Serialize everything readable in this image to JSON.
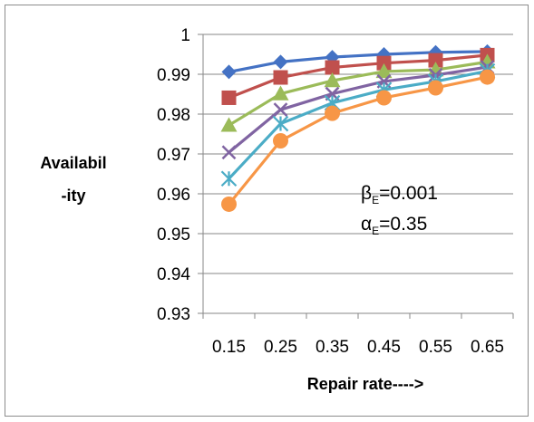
{
  "chart_data": {
    "type": "line",
    "x": [
      0.15,
      0.25,
      0.35,
      0.45,
      0.55,
      0.65
    ],
    "x_tick_labels": [
      "0.15",
      "0.25",
      "0.35",
      "0.45",
      "0.55",
      "0.65"
    ],
    "ylim": [
      0.93,
      1.0
    ],
    "y_tick_labels": [
      "0.93",
      "0.94",
      "0.95",
      "0.96",
      "0.97",
      "0.98",
      "0.99",
      "1"
    ],
    "y_ticks": [
      0.93,
      0.94,
      0.95,
      0.96,
      0.97,
      0.98,
      0.99,
      1.0
    ],
    "xlabel": "Repair rate---->",
    "ylabel_lines": [
      "Availabil",
      "-ity"
    ],
    "grid": "horizontal",
    "legend": "none",
    "annotations": [
      {
        "symbol": "β",
        "subscript": "E",
        "value": "=0.001"
      },
      {
        "symbol": "α",
        "subscript": "E",
        "value": "=0.35"
      }
    ],
    "series": [
      {
        "color": "#4472C4",
        "marker": "diamond",
        "values": [
          0.9906,
          0.9931,
          0.9943,
          0.995,
          0.9955,
          0.9957
        ]
      },
      {
        "color": "#C0504D",
        "marker": "square",
        "values": [
          0.9841,
          0.9892,
          0.9917,
          0.9928,
          0.9935,
          0.9948
        ]
      },
      {
        "color": "#9BBB59",
        "marker": "triangle",
        "values": [
          0.9772,
          0.9851,
          0.9884,
          0.9907,
          0.9911,
          0.9931
        ]
      },
      {
        "color": "#8064A2",
        "marker": "x",
        "values": [
          0.9704,
          0.9811,
          0.9851,
          0.9882,
          0.9898,
          0.9918
        ]
      },
      {
        "color": "#4BACC6",
        "marker": "star",
        "values": [
          0.9638,
          0.9776,
          0.9828,
          0.9861,
          0.9882,
          0.9908
        ]
      },
      {
        "color": "#F79646",
        "marker": "circle",
        "values": [
          0.9574,
          0.9733,
          0.9802,
          0.9841,
          0.9866,
          0.9893
        ]
      }
    ]
  }
}
